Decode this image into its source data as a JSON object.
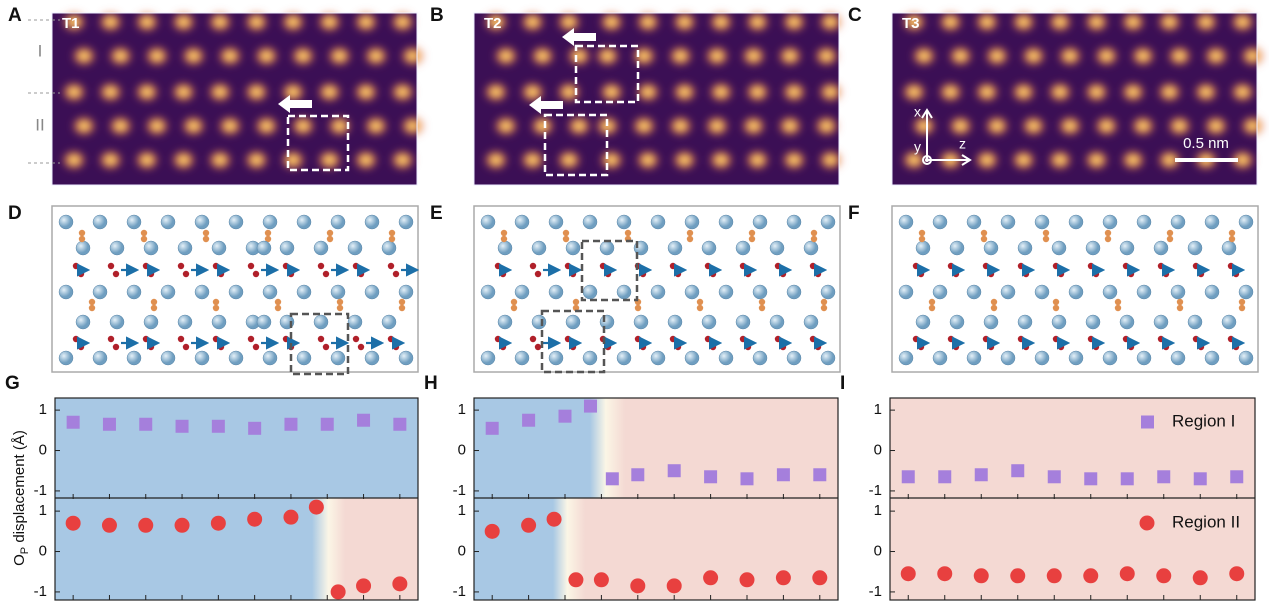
{
  "panels": [
    {
      "label": "A",
      "tag": "T1"
    },
    {
      "label": "B",
      "tag": "T2"
    },
    {
      "label": "C",
      "tag": "T3"
    }
  ],
  "region_labels": [
    "I",
    "II"
  ],
  "axes_labels": {
    "x": "x",
    "y": "y",
    "z": "z"
  },
  "scale_bar": "0.5 nm",
  "diagram_labels": [
    "D",
    "E",
    "F"
  ],
  "chart_data": [
    {
      "type": "scatter",
      "label": "G",
      "ylabel": [
        "O",
        "P",
        " displacement (Å)"
      ],
      "xlim": [
        0.5,
        10.5
      ],
      "xticks": [
        1,
        2,
        3,
        4,
        5,
        6,
        7,
        8,
        9,
        10
      ],
      "ylim": [
        -1.2,
        1.3
      ],
      "yticks": [
        -1,
        0,
        1
      ],
      "series": [
        {
          "marker": "square",
          "color": "#a57fdc",
          "x": [
            1,
            2,
            3,
            4,
            5,
            6,
            7,
            8,
            9,
            10
          ],
          "values": [
            0.7,
            0.65,
            0.65,
            0.6,
            0.6,
            0.55,
            0.65,
            0.65,
            0.75,
            0.65
          ]
        },
        {
          "marker": "circle",
          "color": "#e8403f",
          "x": [
            1,
            2,
            3,
            4,
            5,
            6,
            7,
            7.7,
            8.3,
            9,
            10
          ],
          "values": [
            0.7,
            0.65,
            0.65,
            0.65,
            0.7,
            0.8,
            0.85,
            1.1,
            -1.0,
            -0.85,
            -0.8
          ]
        }
      ]
    },
    {
      "type": "scatter",
      "label": "H",
      "xlim": [
        0.5,
        10.5
      ],
      "xticks": [
        1,
        2,
        3,
        4,
        5,
        6,
        7,
        8,
        9,
        10
      ],
      "ylim": [
        -1.2,
        1.3
      ],
      "yticks": [
        -1,
        0,
        1
      ],
      "series": [
        {
          "marker": "square",
          "color": "#a57fdc",
          "x": [
            1,
            2,
            3,
            3.7,
            4.3,
            5,
            6,
            7,
            8,
            9,
            10
          ],
          "values": [
            0.55,
            0.75,
            0.85,
            1.1,
            -0.7,
            -0.6,
            -0.5,
            -0.65,
            -0.7,
            -0.6,
            -0.6
          ]
        },
        {
          "marker": "circle",
          "color": "#e8403f",
          "x": [
            1,
            2,
            2.7,
            3.3,
            4,
            5,
            6,
            7,
            8,
            9,
            10
          ],
          "values": [
            0.5,
            0.65,
            0.8,
            -0.7,
            -0.7,
            -0.85,
            -0.85,
            -0.65,
            -0.7,
            -0.65,
            -0.65
          ]
        }
      ]
    },
    {
      "type": "scatter",
      "label": "I",
      "xlim": [
        0.5,
        10.5
      ],
      "xticks": [
        1,
        2,
        3,
        4,
        5,
        6,
        7,
        8,
        9,
        10
      ],
      "ylim": [
        -1.2,
        1.3
      ],
      "yticks": [
        -1,
        0,
        1
      ],
      "series": [
        {
          "name": "Region I",
          "marker": "square",
          "color": "#a57fdc",
          "x": [
            1,
            2,
            3,
            4,
            5,
            6,
            7,
            8,
            9,
            10
          ],
          "values": [
            -0.65,
            -0.65,
            -0.6,
            -0.5,
            -0.65,
            -0.7,
            -0.7,
            -0.65,
            -0.7,
            -0.65
          ]
        },
        {
          "name": "Region II",
          "marker": "circle",
          "color": "#e8403f",
          "x": [
            1,
            2,
            3,
            4,
            5,
            6,
            7,
            8,
            9,
            10
          ],
          "values": [
            -0.55,
            -0.55,
            -0.6,
            -0.6,
            -0.6,
            -0.6,
            -0.55,
            -0.6,
            -0.65,
            -0.55
          ]
        }
      ]
    }
  ]
}
